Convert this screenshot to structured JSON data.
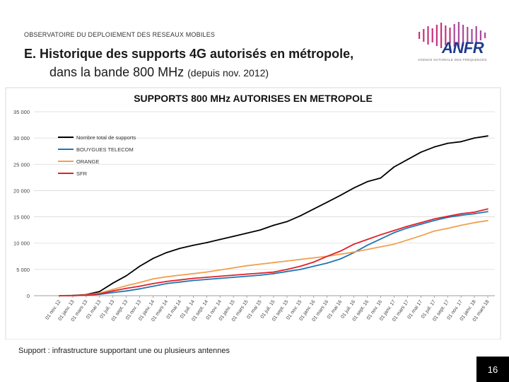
{
  "header": {
    "kicker": "OBSERVATOIRE DU DEPLOIEMENT DES RESEAUX MOBILES",
    "title_bold_1": "E. Historique des supports 4G autorisés en métropole,",
    "title_bold_2": "dans la bande 800 MHz",
    "title_suffix": "(depuis nov. 2012)"
  },
  "logo": {
    "name": "ANFR",
    "subtitle": "AGENCE NATIONALE DES FRÉQUENCES",
    "icon": "anfr-waveform-logo",
    "colors": [
      "#c8327a",
      "#a84a9a",
      "#1f3b8c"
    ]
  },
  "footer": {
    "note": "Support : infrastructure supportant une ou plusieurs antennes",
    "page_number": "16"
  },
  "chart_data": {
    "type": "line",
    "title": "SUPPORTS 800 MHz AUTORISES EN METROPOLE",
    "x": [
      "01 nov. 12",
      "01 janv. 13",
      "01 mars 13",
      "01 mai 13",
      "01 juil. 13",
      "01 sept. 13",
      "01 nov. 13",
      "01 janv. 14",
      "01 mars 14",
      "01 mai 14",
      "01 juil. 14",
      "01 sept. 14",
      "01 nov. 14",
      "01 janv. 15",
      "01 mars 15",
      "01 mai 15",
      "01 juil. 15",
      "01 sept. 15",
      "01 nov. 15",
      "01 janv. 16",
      "01 mars 16",
      "01 mai 16",
      "01 juil. 16",
      "01 sept. 16",
      "01 nov. 16",
      "01 janv. 17",
      "01 mars 17",
      "01 mai 17",
      "01 juil. 17",
      "01 sept. 17",
      "01 nov. 17",
      "01 janv. 18",
      "01 mars 18"
    ],
    "ylim": [
      0,
      35000
    ],
    "yticks": [
      "0",
      "5 000",
      "10 000",
      "15 000",
      "20 000",
      "25 000",
      "30 000",
      "35 000"
    ],
    "ytick_values": [
      0,
      5000,
      10000,
      15000,
      20000,
      25000,
      30000,
      35000
    ],
    "grid": true,
    "legend_position": "top-left",
    "series": [
      {
        "name": "Nombre total de supports",
        "color": "#000000",
        "values": [
          0,
          50,
          200,
          800,
          2400,
          3800,
          5600,
          7100,
          8200,
          9000,
          9600,
          10100,
          10700,
          11300,
          11900,
          12500,
          13400,
          14100,
          15200,
          16500,
          17800,
          19100,
          20500,
          21700,
          22400,
          24500,
          25900,
          27300,
          28300,
          29000,
          29300,
          30000,
          30400
        ]
      },
      {
        "name": "BOUYGUES TELECOM",
        "color": "#1f77b4",
        "values": [
          0,
          20,
          80,
          250,
          600,
          900,
          1300,
          1800,
          2300,
          2600,
          2900,
          3100,
          3300,
          3500,
          3700,
          3900,
          4200,
          4600,
          5000,
          5600,
          6200,
          7000,
          8200,
          9600,
          10800,
          12000,
          12900,
          13600,
          14300,
          14900,
          15300,
          15600,
          16000
        ]
      },
      {
        "name": "ORANGE",
        "color": "#f0a050",
        "values": [
          0,
          20,
          150,
          500,
          1200,
          1900,
          2500,
          3200,
          3600,
          3900,
          4200,
          4500,
          4900,
          5300,
          5700,
          6000,
          6300,
          6600,
          6900,
          7200,
          7500,
          7900,
          8300,
          8800,
          9300,
          9800,
          10600,
          11400,
          12300,
          12800,
          13400,
          13900,
          14300
        ]
      },
      {
        "name": "SFR",
        "color": "#e0202a",
        "values": [
          0,
          20,
          100,
          350,
          900,
          1400,
          1800,
          2300,
          2700,
          3000,
          3300,
          3500,
          3700,
          3900,
          4100,
          4300,
          4500,
          5000,
          5600,
          6400,
          7500,
          8500,
          9800,
          10700,
          11600,
          12400,
          13200,
          13900,
          14600,
          15100,
          15600,
          15900,
          16500
        ]
      }
    ]
  }
}
